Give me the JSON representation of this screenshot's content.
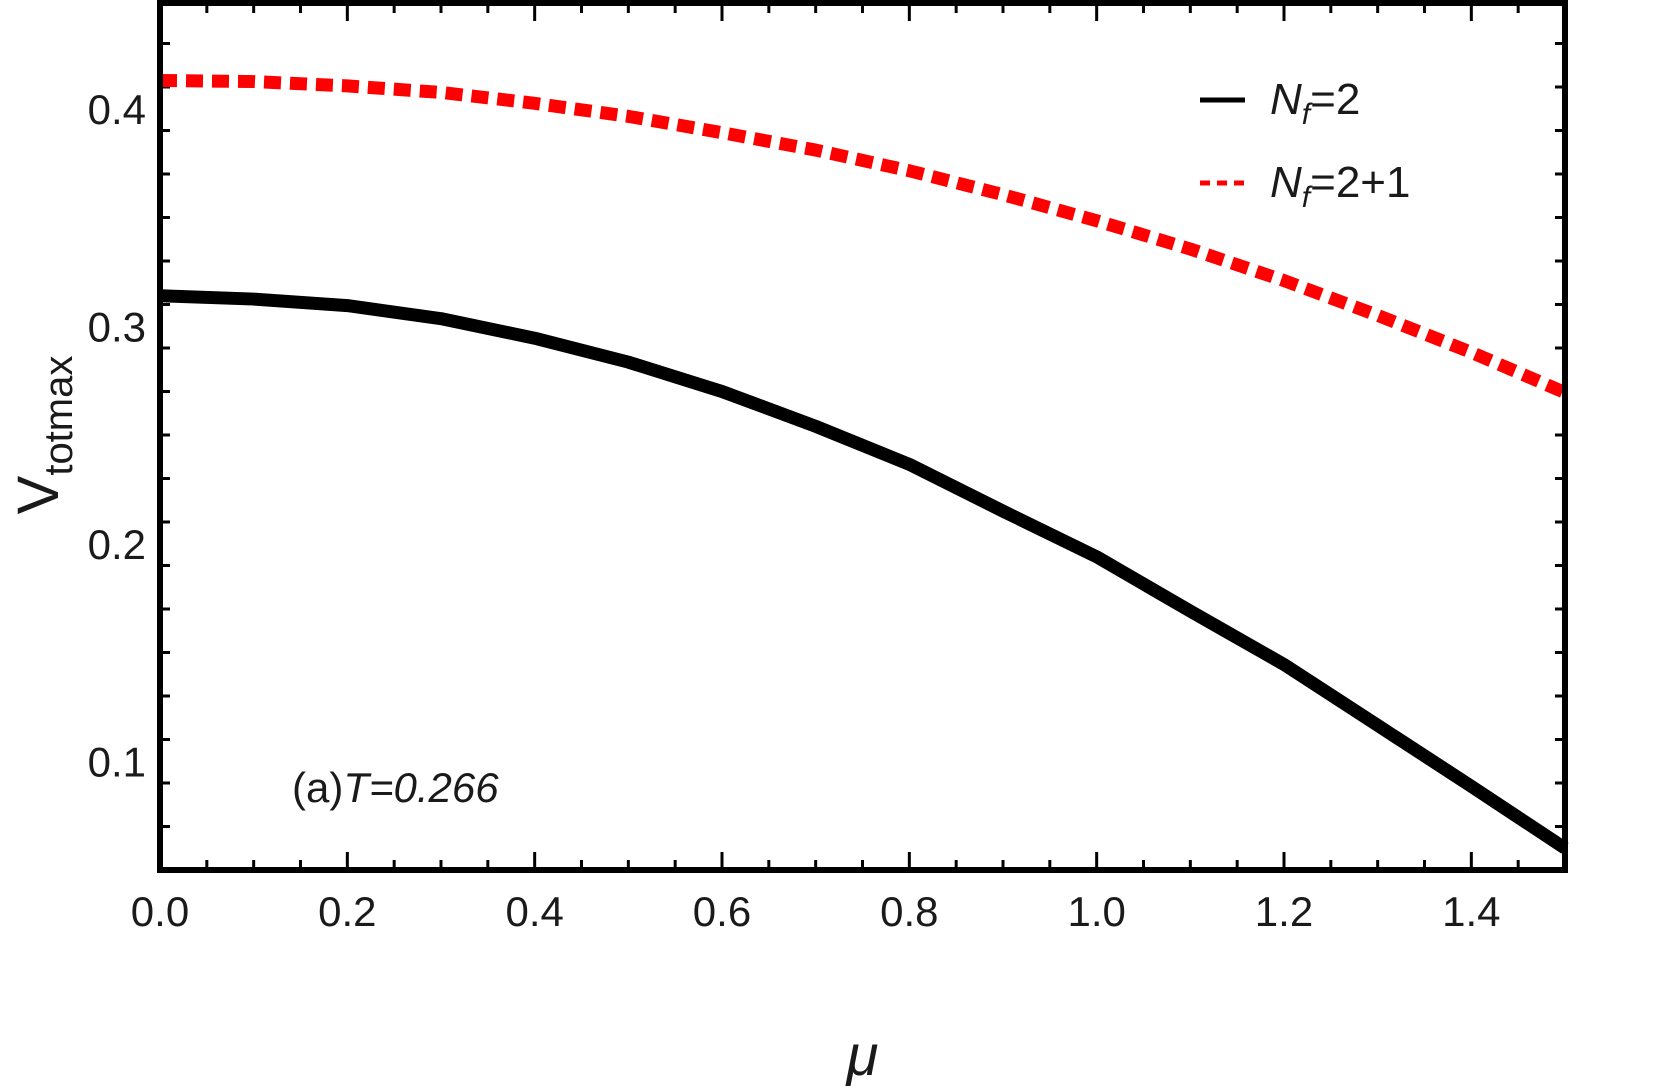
{
  "chart_data": {
    "type": "line",
    "xlabel": "μ",
    "ylabel_main": "V",
    "ylabel_sub": "totmax",
    "xlim": [
      0,
      1.5
    ],
    "ylim": [
      0.05,
      0.45
    ],
    "xticks": [
      0.0,
      0.2,
      0.4,
      0.6,
      0.8,
      1.0,
      1.2,
      1.4
    ],
    "xtick_labels": [
      "0.0",
      "0.2",
      "0.4",
      "0.6",
      "0.8",
      "1.0",
      "1.2",
      "1.4"
    ],
    "yticks": [
      0.1,
      0.2,
      0.3,
      0.4
    ],
    "ytick_labels": [
      "0.1",
      "0.2",
      "0.3",
      "0.4"
    ],
    "annotation": {
      "prefix": "(a)",
      "variable": "T",
      "value": "=0.266"
    },
    "legend_position": "top-right",
    "series": [
      {
        "name_base": "N",
        "name_sub": "f",
        "name_rest": "=2",
        "color": "#000000",
        "style": "solid",
        "x": [
          0.0,
          0.1,
          0.2,
          0.3,
          0.4,
          0.5,
          0.6,
          0.7,
          0.8,
          0.9,
          1.0,
          1.1,
          1.2,
          1.3,
          1.4,
          1.5
        ],
        "y": [
          0.314,
          0.3125,
          0.3095,
          0.3035,
          0.2945,
          0.2835,
          0.27,
          0.254,
          0.2365,
          0.215,
          0.194,
          0.169,
          0.1445,
          0.1165,
          0.0885,
          0.06
        ]
      },
      {
        "name_base": "N",
        "name_sub": "f",
        "name_rest": "=2+1",
        "color": "#ff0000",
        "style": "dashed",
        "x": [
          0.0,
          0.1,
          0.2,
          0.3,
          0.4,
          0.5,
          0.6,
          0.7,
          0.8,
          0.9,
          1.0,
          1.1,
          1.2,
          1.3,
          1.4,
          1.5
        ],
        "y": [
          0.413,
          0.4125,
          0.4105,
          0.4075,
          0.4025,
          0.3965,
          0.389,
          0.381,
          0.3715,
          0.3605,
          0.3485,
          0.3355,
          0.321,
          0.305,
          0.288,
          0.2695
        ]
      }
    ]
  }
}
